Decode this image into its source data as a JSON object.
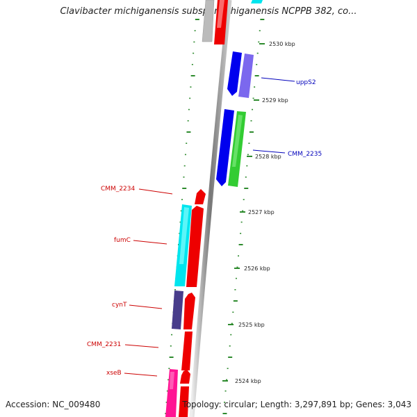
{
  "title": "Clavibacter michiganensis subsp. michiganensis NCPPB 382, co...",
  "footer": {
    "accession": "Accession: NC_009480",
    "summary": "Topology: circular; Length: 3,297,891 bp; Genes: 3,043"
  },
  "ticks": [
    "2530 kbp",
    "2529 kbp",
    "2528 kbp",
    "2527 kbp",
    "2526 kbp",
    "2525 kbp",
    "2524 kbp"
  ],
  "gene_labels": {
    "uppS2": "uppS2",
    "cmm2235": "CMM_2235",
    "cmm2234": "CMM_2234",
    "fumC": "fumC",
    "cynT": "cynT",
    "cmm2231": "CMM_2231",
    "xseB": "xseB"
  },
  "colors": {
    "red": "#ee0000",
    "blue": "#0000ee",
    "slate": "#7b68ee",
    "green": "#33cc33",
    "cyan": "#00e5ee",
    "darkslate": "#483d8b",
    "pink": "#ff1493",
    "gray": "#bbbbbb",
    "tick_green": "#2e8b2e"
  }
}
